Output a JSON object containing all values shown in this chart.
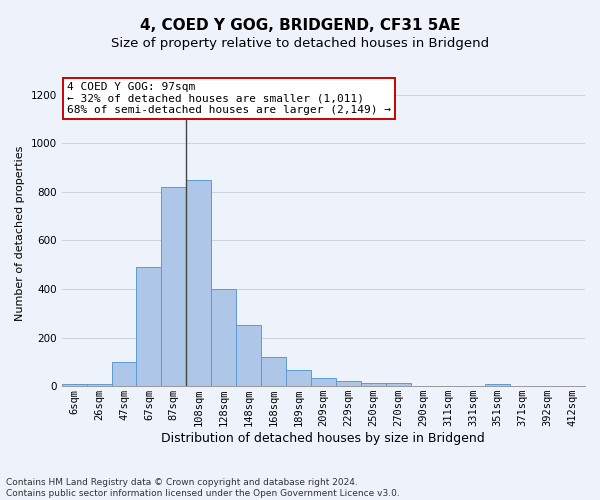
{
  "title": "4, COED Y GOG, BRIDGEND, CF31 5AE",
  "subtitle": "Size of property relative to detached houses in Bridgend",
  "xlabel": "Distribution of detached houses by size in Bridgend",
  "ylabel": "Number of detached properties",
  "categories": [
    "6sqm",
    "26sqm",
    "47sqm",
    "67sqm",
    "87sqm",
    "108sqm",
    "128sqm",
    "148sqm",
    "168sqm",
    "189sqm",
    "209sqm",
    "229sqm",
    "250sqm",
    "270sqm",
    "290sqm",
    "311sqm",
    "331sqm",
    "351sqm",
    "371sqm",
    "392sqm",
    "412sqm"
  ],
  "values": [
    10,
    10,
    100,
    490,
    820,
    850,
    400,
    250,
    120,
    68,
    35,
    22,
    13,
    13,
    0,
    0,
    0,
    10,
    0,
    0,
    0
  ],
  "bar_color": "#aec6e8",
  "bar_edge_color": "#5b9bd5",
  "vline_x": 4.5,
  "vline_color": "#444444",
  "annotation_line1": "4 COED Y GOG: 97sqm",
  "annotation_line2": "← 32% of detached houses are smaller (1,011)",
  "annotation_line3": "68% of semi-detached houses are larger (2,149) →",
  "annotation_box_color": "#ffffff",
  "annotation_box_edge_color": "#cc0000",
  "ylim": [
    0,
    1260
  ],
  "yticks": [
    0,
    200,
    400,
    600,
    800,
    1000,
    1200
  ],
  "grid_color": "#cccccc",
  "background_color": "#eef2fb",
  "footer_line1": "Contains HM Land Registry data © Crown copyright and database right 2024.",
  "footer_line2": "Contains public sector information licensed under the Open Government Licence v3.0.",
  "title_fontsize": 11,
  "subtitle_fontsize": 9.5,
  "xlabel_fontsize": 9,
  "ylabel_fontsize": 8,
  "tick_fontsize": 7.5,
  "annotation_fontsize": 8,
  "footer_fontsize": 6.5
}
